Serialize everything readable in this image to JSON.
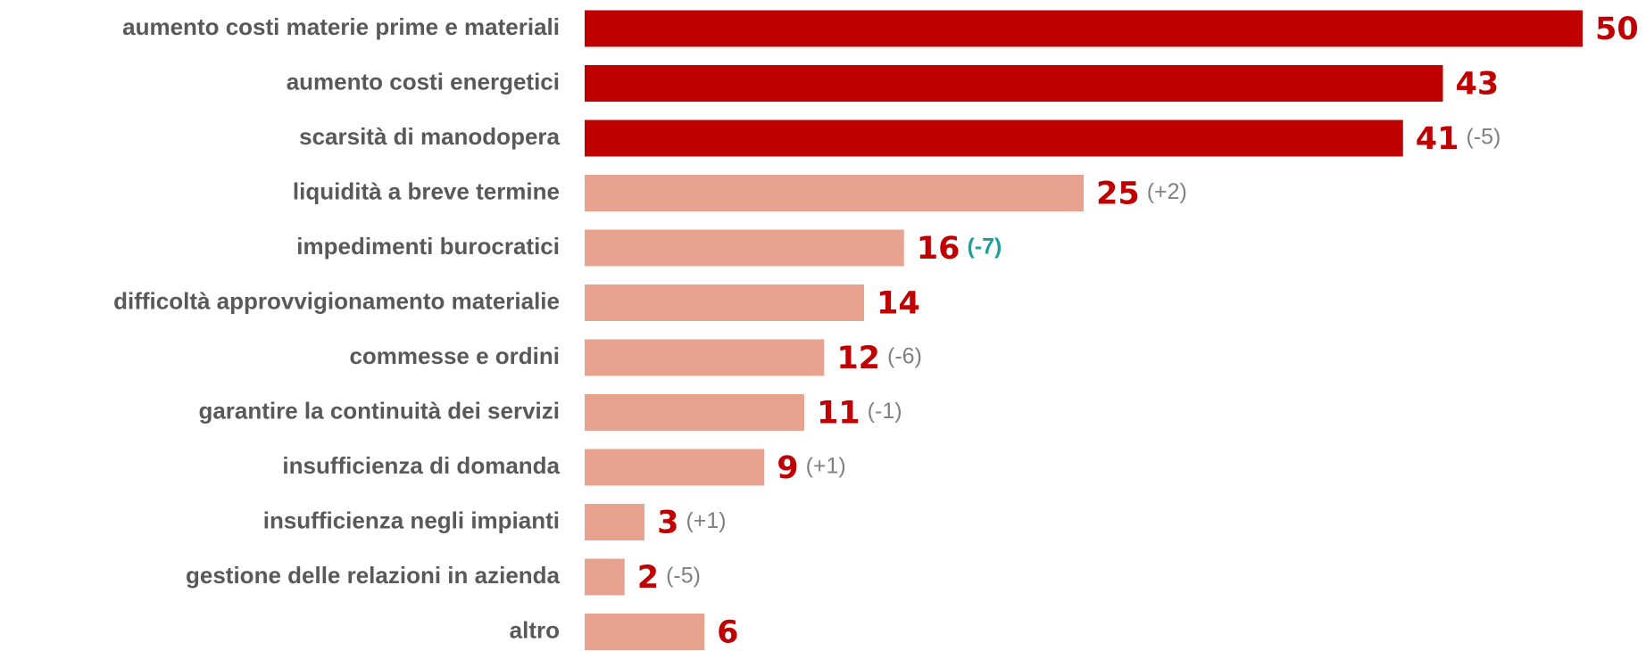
{
  "chart_data": {
    "type": "bar",
    "orientation": "horizontal",
    "categories": [
      "aumento costi materie prime e materiali",
      "aumento  costi energetici",
      "scarsità di manodopera",
      "liquidità a breve termine",
      "impedimenti burocratici",
      "difficoltà approvvigionamento materialie",
      "commesse e ordini",
      "garantire la continuità dei servizi",
      "insufficienza di domanda",
      "insufficienza negli impianti",
      "gestione delle relazioni in azienda",
      "altro"
    ],
    "values": [
      50,
      43,
      41,
      25,
      16,
      14,
      12,
      11,
      9,
      3,
      2,
      6
    ],
    "colors": [
      "#c00000",
      "#c00000",
      "#c00000",
      "#e8a390",
      "#e8a390",
      "#e8a390",
      "#e8a390",
      "#e8a390",
      "#e8a390",
      "#e8a390",
      "#e8a390",
      "#e8a390"
    ],
    "annotations": [
      null,
      null,
      "(-5)",
      "(+2)",
      "(-7)",
      null,
      "(-6)",
      "(-1)",
      "(+1)",
      "(+1)",
      "(-5)",
      null
    ],
    "annotation_colors": [
      null,
      null,
      "#808080",
      "#808080",
      "#1f9e9e",
      null,
      "#808080",
      "#808080",
      "#808080",
      "#808080",
      "#808080",
      null
    ],
    "value_color": "#c00000"
  }
}
